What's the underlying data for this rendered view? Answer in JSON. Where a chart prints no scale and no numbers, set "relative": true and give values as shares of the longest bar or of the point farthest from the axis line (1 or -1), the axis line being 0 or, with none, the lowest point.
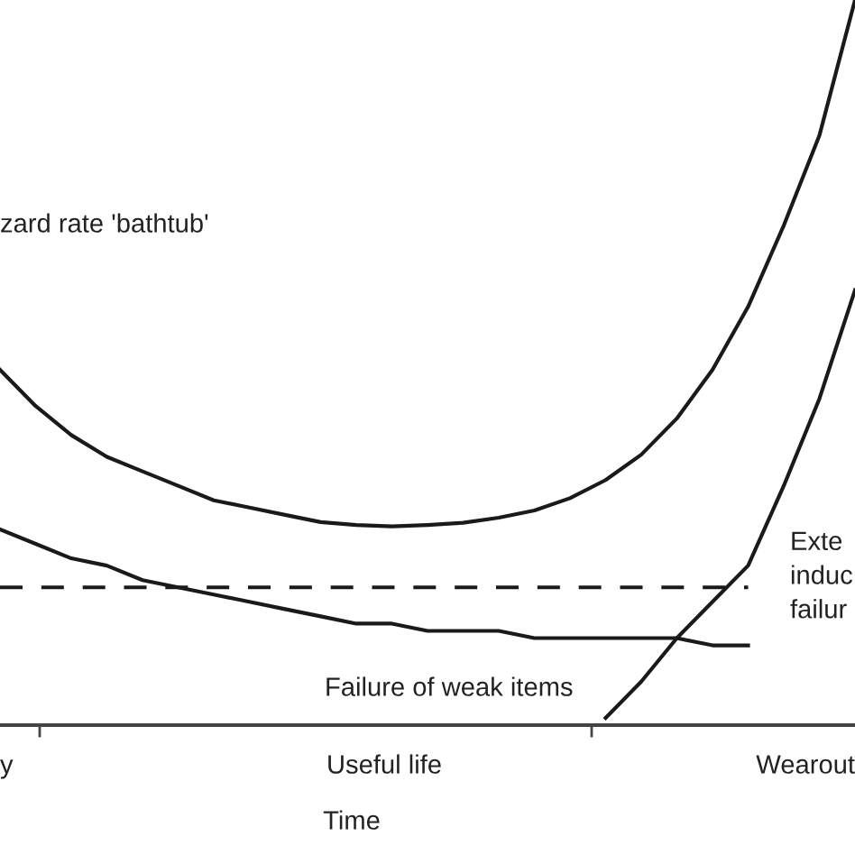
{
  "chart_data": {
    "type": "line",
    "relative": true,
    "xlabel": "Time",
    "categories": [
      null,
      null,
      null,
      null,
      null,
      null,
      null,
      null,
      null,
      null,
      null,
      null,
      null,
      null,
      null,
      null,
      null,
      null,
      null,
      null,
      null,
      null,
      null,
      null,
      null
    ],
    "series": [
      {
        "color": "#1a1a1a",
        "values": [
          0.49,
          0.44,
          0.4,
          0.37,
          0.35,
          0.33,
          0.31,
          0.3,
          0.29,
          0.28,
          0.276,
          0.274,
          0.276,
          0.279,
          0.286,
          0.296,
          0.313,
          0.338,
          0.373,
          0.423,
          0.49,
          0.577,
          0.689,
          0.813,
          1
        ]
      },
      {
        "color": "#1a1a1a",
        "values": [
          0.27,
          0.25,
          0.23,
          0.22,
          0.2,
          0.19,
          0.18,
          0.17,
          0.16,
          0.15,
          0.14,
          0.14,
          0.13,
          0.13,
          0.13,
          0.12,
          0.12,
          0.12,
          0.12,
          0.12,
          0.11,
          0.11,
          null,
          null,
          null
        ]
      },
      {
        "color": "#1a1a1a",
        "values": [
          null,
          null,
          null,
          null,
          null,
          null,
          null,
          null,
          null,
          null,
          null,
          null,
          null,
          null,
          null,
          null,
          null,
          0.01,
          0.06,
          0.12,
          0.17,
          0.22,
          0.33,
          0.45,
          0.6
        ]
      },
      {
        "color": "#1a1a1a",
        "line_style": "dashed",
        "values": [
          0.19,
          0.19,
          0.19,
          0.19,
          0.19,
          0.19,
          0.19,
          0.19,
          0.19,
          0.19,
          0.19,
          0.19,
          0.19,
          0.19,
          0.19,
          0.19,
          0.19,
          0.19,
          0.19,
          0.19,
          0.19,
          0.19,
          null,
          null,
          null
        ]
      }
    ],
    "annotations": [
      "zard rate 'bathtub'",
      "Failure of weak items",
      "Exte\ninduc\nfailur",
      "y",
      "Useful life",
      "Wearout"
    ],
    "legend": false,
    "marker": "none",
    "line_style": "solid"
  }
}
